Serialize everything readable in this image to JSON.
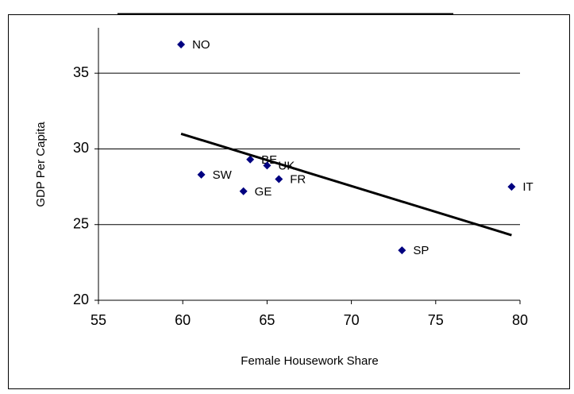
{
  "chart_data": {
    "type": "scatter",
    "x_label": "Female Housework Share",
    "y_label": "GDP Per Capita",
    "labels": [
      "NO",
      "SW",
      "BE",
      "UK",
      "FR",
      "GE",
      "IT",
      "SP"
    ],
    "x": [
      59.9,
      61.1,
      64.0,
      65.0,
      65.7,
      63.6,
      79.5,
      73.0
    ],
    "y": [
      36.9,
      28.3,
      29.3,
      28.9,
      28.0,
      27.2,
      27.5,
      23.3
    ],
    "color": "#000080",
    "trendline": {
      "x": [
        59.9,
        79.5
      ],
      "y": [
        31.0,
        24.3
      ],
      "color": "#000000"
    },
    "xlim": [
      55,
      80
    ],
    "xticks": [
      55,
      60,
      65,
      70,
      75,
      80
    ],
    "ylim": [
      20,
      38
    ],
    "yticks": [
      20,
      25,
      30,
      35
    ],
    "grid": true
  }
}
